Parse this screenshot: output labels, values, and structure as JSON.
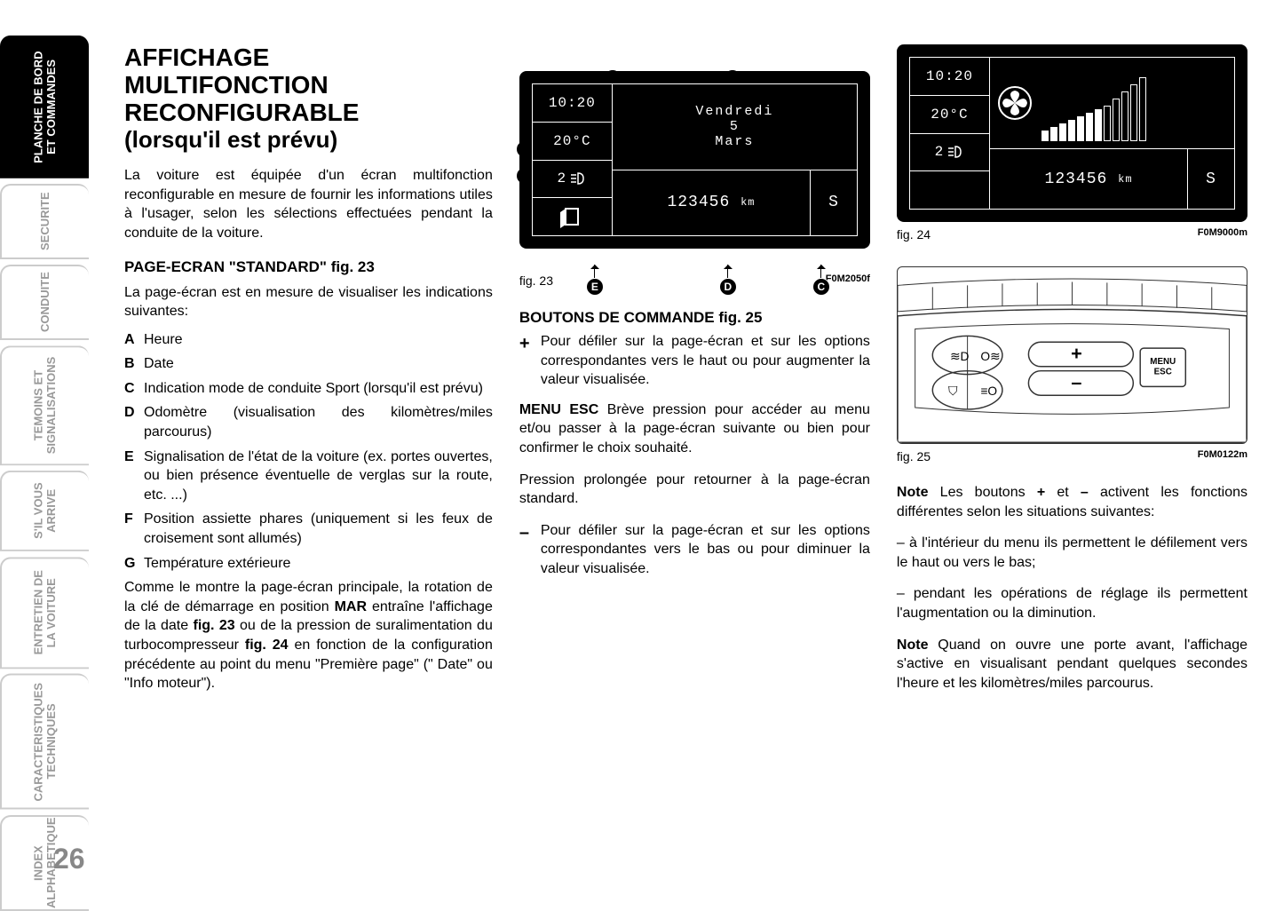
{
  "page_number": "26",
  "tabs": [
    "PLANCHE DE BORD ET COMMANDES",
    "SECURITE",
    "CONDUITE",
    "TEMOINS ET SIGNALISATIONS",
    "S'IL VOUS ARRIVE",
    "ENTRETIEN DE LA VOITURE",
    "CARACTERISTIQUES TECHNIQUES",
    "INDEX ALPHABETIQUE"
  ],
  "title_line1": "AFFICHAGE",
  "title_line2": "MULTIFONCTION",
  "title_line3": "RECONFIGURABLE",
  "title_sub": "(lorsqu'il est prévu)",
  "intro": "La voiture est équipée d'un écran multifonction reconfigurable en mesure de fournir les informations utiles à l'usager, selon les sélections effectuées pendant la conduite de la voiture.",
  "heading_standard": "PAGE-ECRAN \"STANDARD\" fig. 23",
  "standard_intro": "La page-écran est en mesure de visualiser les indications suivantes:",
  "defs": [
    {
      "k": "A",
      "v": "Heure"
    },
    {
      "k": "B",
      "v": "Date"
    },
    {
      "k": "C",
      "v": "Indication mode de conduite Sport (lorsqu'il est prévu)"
    },
    {
      "k": "D",
      "v": "Odomètre (visualisation des kilomètres/miles parcourus)"
    },
    {
      "k": "E",
      "v": "Signalisation de l'état de la voiture (ex. portes ouvertes, ou bien présence éventuelle de verglas sur la route, etc. ...)"
    },
    {
      "k": "F",
      "v": "Position assiette phares (uniquement si les feux de croisement sont allumés)"
    },
    {
      "k": "G",
      "v": "Température extérieure"
    }
  ],
  "para_mar": "Comme le montre la page-écran principale, la rotation de la clé de démarrage en position MAR entraîne l'affichage de la date fig. 23 ou de la pression de suralimentation du turbocompresseur fig. 24 en fonction de la configuration précédente au point du menu \"Première page\" (\" Date\" ou \"Info moteur\").",
  "display": {
    "time": "10:20",
    "temp": "20°C",
    "headlamp": "2",
    "day": "Vendredi",
    "daynum": "5",
    "month": "Mars",
    "odometer": "123456",
    "odo_unit": "km",
    "sport": "S"
  },
  "fig23_label": "fig. 23",
  "fig23_code": "F0M2050f",
  "fig24_label": "fig. 24",
  "fig24_code": "F0M9000m",
  "fig25_label": "fig. 25",
  "fig25_code": "F0M0122m",
  "callouts": [
    "A",
    "B",
    "C",
    "D",
    "E",
    "F",
    "G"
  ],
  "heading_buttons": "BOUTONS DE COMMANDE fig. 25",
  "btn_plus": "Pour défiler sur la page-écran et sur les options correspondantes vers le haut ou pour augmenter la valeur visualisée.",
  "btn_menu_label": "MENU ESC",
  "btn_menu": "Brève pression pour accéder au menu et/ou passer à la page-écran suivante ou bien pour confirmer le choix souhaité.",
  "btn_menu2": "Pression prolongée pour retourner à la page-écran standard.",
  "btn_minus": "Pour défiler sur la page-écran et sur les options correspondantes vers le bas ou pour diminuer la valeur visualisée.",
  "note1": "Note Les boutons + et – activent les fonctions différentes selon les situations suivantes:",
  "note1a": "– à l'intérieur du menu ils permettent le défilement vers le haut ou vers le bas;",
  "note1b": "– pendant les opérations de réglage ils permettent l'augmentation ou la diminution.",
  "note2": "Note Quand on ouvre une porte avant, l'affichage s'active en visualisant pendant quelques secondes l'heure et les kilomètres/miles parcourus.",
  "fig25_buttons": {
    "plus": "+",
    "minus": "–",
    "menu": "MENU ESC"
  },
  "colors": {
    "screen_bg": "#000000",
    "screen_fg": "#ffffff",
    "tab_inactive": "#999999",
    "tab_active_bg": "#000000"
  }
}
